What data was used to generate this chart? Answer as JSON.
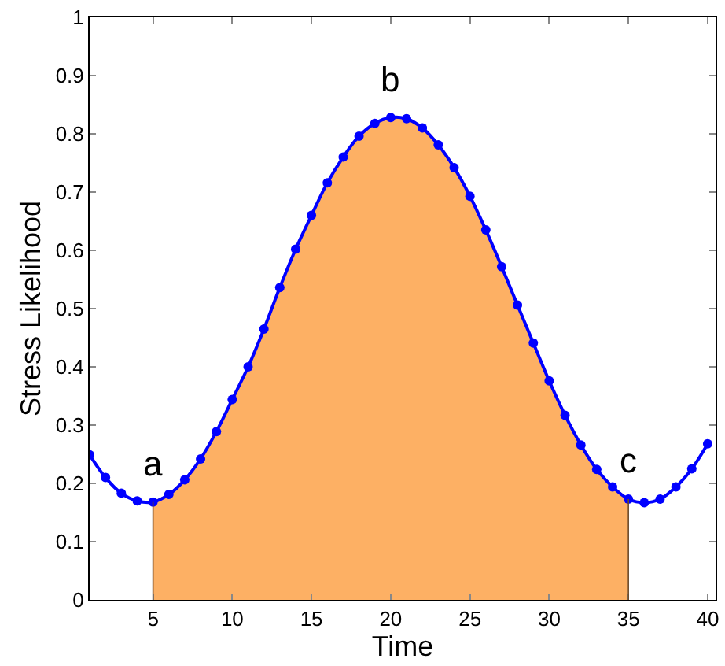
{
  "chart_data": {
    "type": "line",
    "xlabel": "Time",
    "ylabel": "Stress Likelihood",
    "xlim": [
      1,
      40.5
    ],
    "ylim": [
      0,
      1
    ],
    "xticks": [
      5,
      10,
      15,
      20,
      25,
      30,
      35,
      40
    ],
    "yticks": [
      0,
      0.1,
      0.2,
      0.3,
      0.4,
      0.5,
      0.6,
      0.7,
      0.8,
      0.9,
      1
    ],
    "marker": "circle",
    "line_style": "solid",
    "series": [
      {
        "type": "area",
        "marker": "none",
        "color": "#fdb064",
        "x": [
          5,
          6,
          7,
          8,
          9,
          10,
          11,
          12,
          13,
          14,
          15,
          16,
          17,
          18,
          19,
          20,
          21,
          22,
          23,
          24,
          25,
          26,
          27,
          28,
          29,
          30,
          31,
          32,
          33,
          34,
          35
        ],
        "values": [
          0.168,
          0.181,
          0.206,
          0.242,
          0.289,
          0.344,
          0.4,
          0.465,
          0.536,
          0.602,
          0.66,
          0.716,
          0.76,
          0.796,
          0.818,
          0.828,
          0.826,
          0.81,
          0.781,
          0.742,
          0.693,
          0.635,
          0.572,
          0.506,
          0.441,
          0.376,
          0.317,
          0.266,
          0.224,
          0.194,
          0.173
        ]
      },
      {
        "color": "#0000ff",
        "x": [
          1,
          2,
          3,
          4,
          5,
          6,
          7,
          8,
          9,
          10,
          11,
          12,
          13,
          14,
          15,
          16,
          17,
          18,
          19,
          20,
          21,
          22,
          23,
          24,
          25,
          26,
          27,
          28,
          29,
          30,
          31,
          32,
          33,
          34,
          35,
          36,
          37,
          38,
          39,
          40
        ],
        "values": [
          0.249,
          0.21,
          0.183,
          0.17,
          0.168,
          0.181,
          0.206,
          0.242,
          0.289,
          0.344,
          0.4,
          0.465,
          0.536,
          0.602,
          0.66,
          0.716,
          0.76,
          0.796,
          0.818,
          0.828,
          0.826,
          0.81,
          0.781,
          0.742,
          0.693,
          0.635,
          0.572,
          0.506,
          0.441,
          0.376,
          0.317,
          0.266,
          0.224,
          0.194,
          0.173,
          0.167,
          0.173,
          0.194,
          0.225,
          0.268
        ]
      }
    ],
    "annotations": [
      {
        "text": "a",
        "x": 5,
        "y": 0.168
      },
      {
        "text": "b",
        "x": 20,
        "y": 0.828
      },
      {
        "text": "c",
        "x": 35,
        "y": 0.173
      }
    ]
  }
}
